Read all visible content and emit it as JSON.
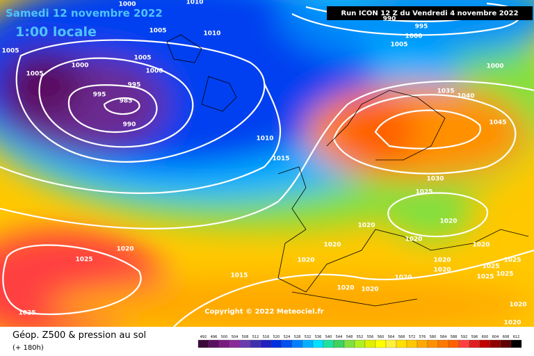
{
  "header": {
    "date": "Samedi 12 novembre 2022",
    "time": "1:00 locale",
    "run": "Run ICON 12 Z du Vendredi 4 novembre 2022"
  },
  "copyright": "Copyright © 2022 Meteociel.fr",
  "footer": {
    "title": "Géop. Z500 & pression au sol",
    "lead": "(+ 180h)"
  },
  "legend": {
    "values": [
      492,
      496,
      500,
      504,
      508,
      512,
      516,
      520,
      524,
      528,
      532,
      536,
      540,
      544,
      548,
      552,
      556,
      560,
      564,
      568,
      572,
      576,
      580,
      584,
      588,
      592,
      596,
      600,
      604,
      608,
      612
    ],
    "colors": [
      "#3a0a3a",
      "#5a1060",
      "#7a1a80",
      "#8a2a9a",
      "#6a3ab0",
      "#4030b0",
      "#2020c0",
      "#0030e0",
      "#0050f0",
      "#0080ff",
      "#00b0ff",
      "#00e0ff",
      "#20e0a0",
      "#40d060",
      "#80e040",
      "#b0f020",
      "#e0f000",
      "#ffff00",
      "#fff040",
      "#ffe000",
      "#ffc800",
      "#ffa800",
      "#ff9000",
      "#ff7800",
      "#ff6000",
      "#ff4040",
      "#e02020",
      "#c00000",
      "#900000",
      "#600000",
      "#000000"
    ]
  },
  "isobar_labels": [
    1000,
    1010,
    1005,
    1010,
    1005,
    1005,
    1000,
    1005,
    1000,
    995,
    995,
    985,
    990,
    1010,
    1015,
    1030,
    1025,
    1020,
    1020,
    1020,
    1020,
    1020,
    1020,
    1025,
    1020,
    1020,
    1015,
    1020,
    1025,
    1025,
    1025,
    1020,
    1025,
    1020,
    1020,
    1025,
    1020,
    1020,
    995,
    1000,
    1005,
    1000,
    1035,
    1040,
    1045,
    990
  ]
}
